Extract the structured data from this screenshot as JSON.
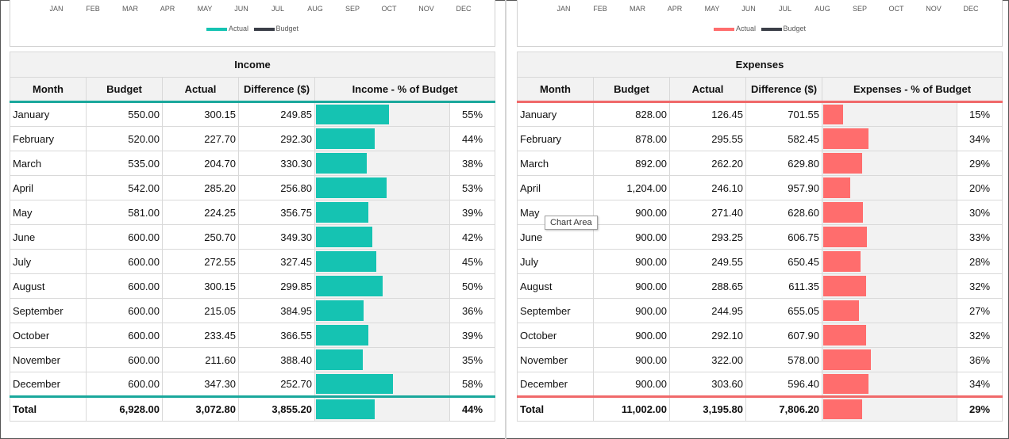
{
  "colors": {
    "income": "#15c3b2",
    "expenses": "#ff6d6d",
    "budget_line": "#3b3f48"
  },
  "income_chart": {
    "months": [
      "JAN",
      "FEB",
      "MAR",
      "APR",
      "MAY",
      "JUN",
      "JUL",
      "AUG",
      "SEP",
      "OCT",
      "NOV",
      "DEC"
    ],
    "legend_actual": "Actual",
    "legend_budget": "Budget"
  },
  "expenses_chart": {
    "months": [
      "JAN",
      "FEB",
      "MAR",
      "APR",
      "MAY",
      "JUN",
      "JUL",
      "AUG",
      "SEP",
      "OCT",
      "NOV",
      "DEC"
    ],
    "legend_actual": "Actual",
    "legend_budget": "Budget"
  },
  "income": {
    "title": "Income",
    "headers": [
      "Month",
      "Budget",
      "Actual",
      "Difference ($)",
      "Income - % of Budget"
    ],
    "rows": [
      {
        "month": "January",
        "budget": "550.00",
        "actual": "300.15",
        "diff": "249.85",
        "pct": "55%",
        "frac": 0.55
      },
      {
        "month": "February",
        "budget": "520.00",
        "actual": "227.70",
        "diff": "292.30",
        "pct": "44%",
        "frac": 0.44
      },
      {
        "month": "March",
        "budget": "535.00",
        "actual": "204.70",
        "diff": "330.30",
        "pct": "38%",
        "frac": 0.38
      },
      {
        "month": "April",
        "budget": "542.00",
        "actual": "285.20",
        "diff": "256.80",
        "pct": "53%",
        "frac": 0.53
      },
      {
        "month": "May",
        "budget": "581.00",
        "actual": "224.25",
        "diff": "356.75",
        "pct": "39%",
        "frac": 0.39
      },
      {
        "month": "June",
        "budget": "600.00",
        "actual": "250.70",
        "diff": "349.30",
        "pct": "42%",
        "frac": 0.42
      },
      {
        "month": "July",
        "budget": "600.00",
        "actual": "272.55",
        "diff": "327.45",
        "pct": "45%",
        "frac": 0.45
      },
      {
        "month": "August",
        "budget": "600.00",
        "actual": "300.15",
        "diff": "299.85",
        "pct": "50%",
        "frac": 0.5
      },
      {
        "month": "September",
        "budget": "600.00",
        "actual": "215.05",
        "diff": "384.95",
        "pct": "36%",
        "frac": 0.36
      },
      {
        "month": "October",
        "budget": "600.00",
        "actual": "233.45",
        "diff": "366.55",
        "pct": "39%",
        "frac": 0.39
      },
      {
        "month": "November",
        "budget": "600.00",
        "actual": "211.60",
        "diff": "388.40",
        "pct": "35%",
        "frac": 0.35
      },
      {
        "month": "December",
        "budget": "600.00",
        "actual": "347.30",
        "diff": "252.70",
        "pct": "58%",
        "frac": 0.58
      }
    ],
    "total": {
      "month": "Total",
      "budget": "6,928.00",
      "actual": "3,072.80",
      "diff": "3,855.20",
      "pct": "44%",
      "frac": 0.44
    }
  },
  "expenses": {
    "title": "Expenses",
    "headers": [
      "Month",
      "Budget",
      "Actual",
      "Difference ($)",
      "Expenses - % of Budget"
    ],
    "rows": [
      {
        "month": "January",
        "budget": "828.00",
        "actual": "126.45",
        "diff": "701.55",
        "pct": "15%",
        "frac": 0.15
      },
      {
        "month": "February",
        "budget": "878.00",
        "actual": "295.55",
        "diff": "582.45",
        "pct": "34%",
        "frac": 0.34
      },
      {
        "month": "March",
        "budget": "892.00",
        "actual": "262.20",
        "diff": "629.80",
        "pct": "29%",
        "frac": 0.29
      },
      {
        "month": "April",
        "budget": "1,204.00",
        "actual": "246.10",
        "diff": "957.90",
        "pct": "20%",
        "frac": 0.2
      },
      {
        "month": "May",
        "budget": "900.00",
        "actual": "271.40",
        "diff": "628.60",
        "pct": "30%",
        "frac": 0.3
      },
      {
        "month": "June",
        "budget": "900.00",
        "actual": "293.25",
        "diff": "606.75",
        "pct": "33%",
        "frac": 0.33
      },
      {
        "month": "July",
        "budget": "900.00",
        "actual": "249.55",
        "diff": "650.45",
        "pct": "28%",
        "frac": 0.28
      },
      {
        "month": "August",
        "budget": "900.00",
        "actual": "288.65",
        "diff": "611.35",
        "pct": "32%",
        "frac": 0.32
      },
      {
        "month": "September",
        "budget": "900.00",
        "actual": "244.95",
        "diff": "655.05",
        "pct": "27%",
        "frac": 0.27
      },
      {
        "month": "October",
        "budget": "900.00",
        "actual": "292.10",
        "diff": "607.90",
        "pct": "32%",
        "frac": 0.32
      },
      {
        "month": "November",
        "budget": "900.00",
        "actual": "322.00",
        "diff": "578.00",
        "pct": "36%",
        "frac": 0.36
      },
      {
        "month": "December",
        "budget": "900.00",
        "actual": "303.60",
        "diff": "596.40",
        "pct": "34%",
        "frac": 0.34
      }
    ],
    "total": {
      "month": "Total",
      "budget": "11,002.00",
      "actual": "3,195.80",
      "diff": "7,806.20",
      "pct": "29%",
      "frac": 0.29
    }
  },
  "tooltip": {
    "text": "Chart Area"
  }
}
